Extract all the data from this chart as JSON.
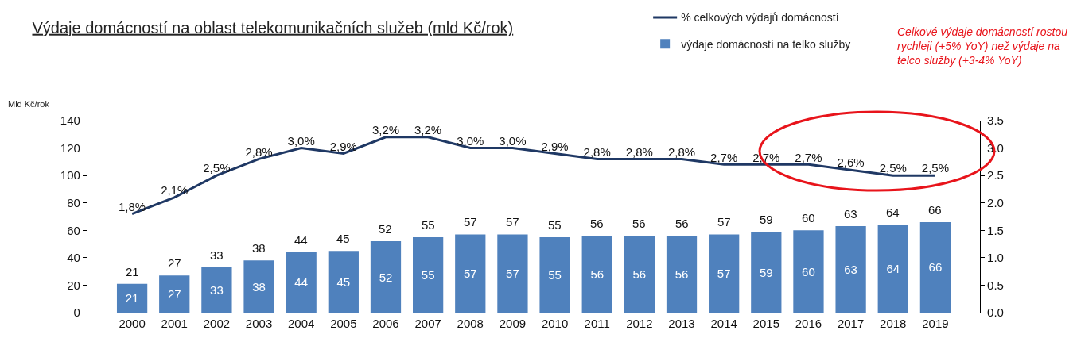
{
  "chart_data": {
    "type": "bar",
    "title": "Výdaje domácností na oblast telekomunikačních služeb (mld Kč/rok)",
    "ylabel": "Mld Kč/rok",
    "categories": [
      "2000",
      "2001",
      "2002",
      "2003",
      "2004",
      "2005",
      "2006",
      "2007",
      "2008",
      "2009",
      "2010",
      "2011",
      "2012",
      "2013",
      "2014",
      "2015",
      "2016",
      "2017",
      "2018",
      "2019"
    ],
    "series": [
      {
        "name": "výdaje domácností na telko služby",
        "color": "#4f81bd",
        "values": [
          21,
          27,
          33,
          38,
          44,
          45,
          52,
          55,
          57,
          57,
          55,
          56,
          56,
          56,
          57,
          59,
          60,
          63,
          64,
          66
        ],
        "value_labels": [
          "21",
          "27",
          "33",
          "38",
          "44",
          "45",
          "52",
          "55",
          "57",
          "57",
          "55",
          "56",
          "56",
          "56",
          "57",
          "59",
          "60",
          "63",
          "64",
          "66"
        ]
      },
      {
        "name": "% celkových výdajů domácností",
        "type": "line",
        "axis": "y2",
        "color": "#1f3864",
        "values": [
          1.8,
          2.1,
          2.5,
          2.8,
          3.0,
          2.9,
          3.2,
          3.2,
          3.0,
          3.0,
          2.9,
          2.8,
          2.8,
          2.8,
          2.7,
          2.7,
          2.7,
          2.6,
          2.5,
          2.5
        ],
        "value_labels": [
          "1,8%",
          "2,1%",
          "2,5%",
          "2,8%",
          "3,0%",
          "2,9%",
          "3,2%",
          "3,2%",
          "3,0%",
          "3,0%",
          "2,9%",
          "2,8%",
          "2,8%",
          "2,8%",
          "2,7%",
          "2,7%",
          "2,7%",
          "2,6%",
          "2,5%",
          "2,5%"
        ]
      }
    ],
    "ylim": [
      0,
      140
    ],
    "yticks": [
      0,
      20,
      40,
      60,
      80,
      100,
      120,
      140
    ],
    "y2lim": [
      0,
      3.5
    ],
    "y2ticks": [
      {
        "value": 0,
        "label": "0.0"
      },
      0.5,
      {
        "value": 1,
        "label": "1.0"
      },
      1.5,
      {
        "value": 2,
        "label": "2.0"
      },
      2.5,
      {
        "value": 3,
        "label": "3.0"
      },
      3.5
    ],
    "annotations": [
      "Celkové výdaje domácností rostou rychleji (+5% YoY) než výdaje na telco služby (+3-4% YoY)"
    ],
    "legend": "top"
  }
}
